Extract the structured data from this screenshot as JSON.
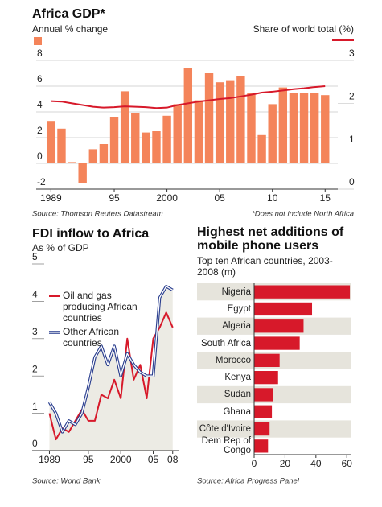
{
  "chart_data": [
    {
      "type": "bar",
      "title": "Africa GDP*",
      "source": "Source: Thomson Reuters Datastream",
      "note": "*Does not include North Africa",
      "x": [
        1989,
        1990,
        1991,
        1992,
        1993,
        1994,
        1995,
        1996,
        1997,
        1998,
        1999,
        2000,
        2001,
        2002,
        2003,
        2004,
        2005,
        2006,
        2007,
        2008,
        2009,
        2010,
        2011,
        2012,
        2013,
        2014,
        2015
      ],
      "xlim": [
        1987.6,
        2016.2
      ],
      "xticks": [
        1989,
        {
          "value": 1995,
          "label": "95"
        },
        2000,
        {
          "value": 2005,
          "label": "05"
        },
        {
          "value": 2010,
          "label": "10"
        },
        {
          "value": 2015,
          "label": "15"
        }
      ],
      "ylim": [
        -2,
        8
      ],
      "yticks": [
        -2,
        0,
        2,
        4,
        6,
        8
      ],
      "y2lim": [
        0,
        3
      ],
      "y2ticks": [
        0,
        1,
        2,
        3
      ],
      "grid": true,
      "series": [
        {
          "name": "Annual % change",
          "color": "#f4845a",
          "type": "bar",
          "values": [
            3.3,
            2.7,
            0.1,
            -1.5,
            1.1,
            1.5,
            3.6,
            5.6,
            3.9,
            2.4,
            2.5,
            3.7,
            4.6,
            7.4,
            4.9,
            7.0,
            6.3,
            6.4,
            6.8,
            5.5,
            2.2,
            4.6,
            5.9,
            5.5,
            5.5,
            5.5,
            5.3
          ]
        },
        {
          "name": "Share of world total  (%)",
          "color": "#d7192a",
          "type": "line",
          "axis": "y2",
          "values": [
            2.05,
            2.04,
            2.0,
            1.96,
            1.92,
            1.9,
            1.91,
            1.93,
            1.92,
            1.91,
            1.89,
            1.9,
            1.96,
            2.0,
            2.04,
            2.07,
            2.1,
            2.12,
            2.16,
            2.2,
            2.25,
            2.27,
            2.3,
            2.33,
            2.35,
            2.38,
            2.4
          ]
        }
      ]
    },
    {
      "type": "line",
      "title": "FDI inflow to Africa",
      "subtitle": "As % of GDP",
      "source": "Source: World Bank",
      "x": [
        1989,
        1990,
        1991,
        1992,
        1993,
        1994,
        1995,
        1996,
        1997,
        1998,
        1999,
        2000,
        2001,
        2002,
        2003,
        2004,
        2005,
        2006,
        2007,
        2008
      ],
      "xlim": [
        1988.2,
        2008.9
      ],
      "xticks": [
        1989,
        {
          "value": 1995,
          "label": "95"
        },
        2000,
        {
          "value": 2005,
          "label": "05"
        },
        {
          "value": 2008,
          "label": "08"
        }
      ],
      "ylim": [
        0,
        5
      ],
      "yticks": [
        0,
        1,
        2,
        3,
        4,
        5
      ],
      "series": [
        {
          "name": "Oil and gas producing African countries",
          "color": "#d7192a",
          "values": [
            1.0,
            0.3,
            0.6,
            0.5,
            0.8,
            1.1,
            0.8,
            0.8,
            1.5,
            1.4,
            1.9,
            1.4,
            3.0,
            1.9,
            2.3,
            1.4,
            3.0,
            3.3,
            3.7,
            3.3
          ]
        },
        {
          "name": "Other African countries",
          "color": "#2b3f8f",
          "values": [
            1.3,
            1.0,
            0.5,
            0.8,
            0.7,
            1.0,
            1.7,
            2.5,
            2.8,
            2.3,
            2.8,
            2.0,
            2.6,
            2.3,
            2.1,
            2.0,
            2.0,
            4.1,
            4.4,
            4.3
          ]
        }
      ]
    },
    {
      "type": "barh",
      "title": "Highest net additions of mobile phone users",
      "subtitle": "Top ten African countries, 2003-2008 (m)",
      "source": "Source: Africa Progress Panel",
      "categories": [
        "Nigeria",
        "Egypt",
        "Algeria",
        "South Africa",
        "Morocco",
        "Kenya",
        "Sudan",
        "Ghana",
        "Côte d'Ivoire",
        "Dem Rep of Congo"
      ],
      "values": [
        62,
        37.5,
        32,
        29.5,
        16.5,
        15.5,
        12,
        11.5,
        10,
        9
      ],
      "color": "#d7192a",
      "xlim": [
        0,
        63
      ],
      "xticks": [
        0,
        20,
        40,
        60
      ]
    }
  ]
}
